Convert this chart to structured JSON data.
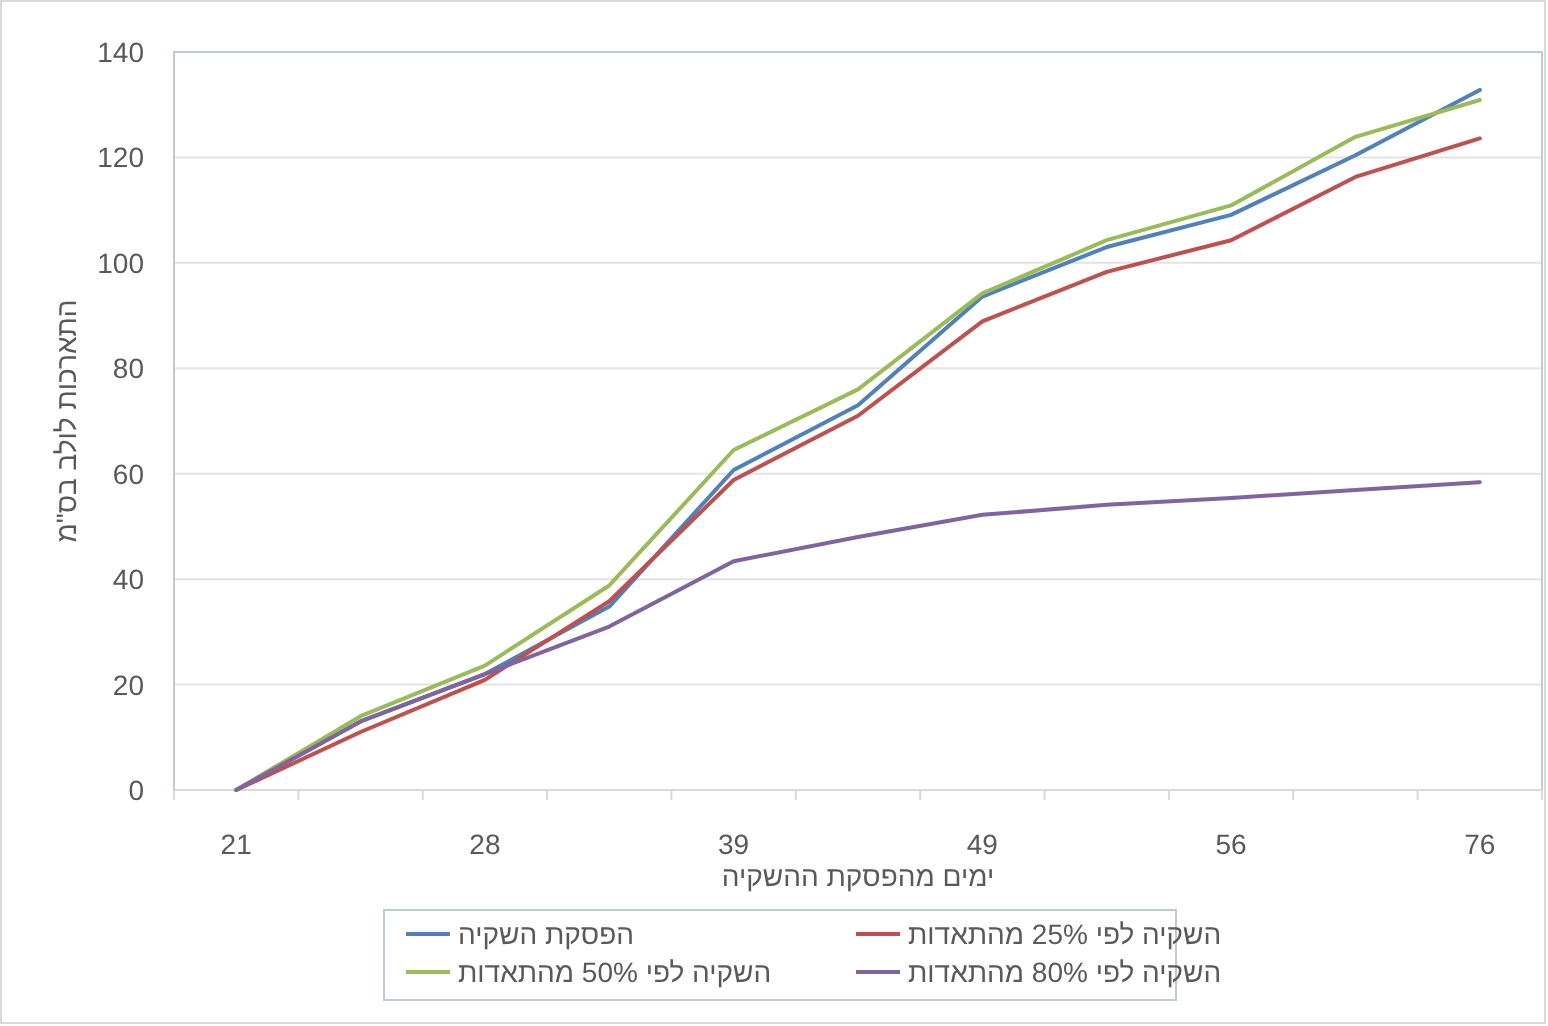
{
  "chart_data": {
    "type": "line",
    "xlabel": "ימים מהפסקת ההשקיה",
    "ylabel": "התארכות לולב בס\"מ",
    "categories": [
      "21",
      null,
      "28",
      null,
      "39",
      null,
      "49",
      null,
      "56",
      null,
      "76"
    ],
    "series": [
      {
        "name": "הפסקת השקיה",
        "color": "#4f81bd",
        "values": [
          0,
          13,
          22,
          34.8,
          60.7,
          73,
          93.6,
          103,
          109.1,
          120.4,
          132.8
        ]
      },
      {
        "name": "השקיה לפי 25% מהתאדות",
        "color": "#c0504d",
        "values": [
          0,
          11,
          20.9,
          35.8,
          58.8,
          71,
          88.9,
          98.3,
          104.3,
          116.3,
          123.6
        ]
      },
      {
        "name": "השקיה לפי 50% מהתאדות",
        "color": "#9bbb59",
        "values": [
          0,
          14,
          23.6,
          38.8,
          64.5,
          76,
          94.2,
          104.3,
          110.9,
          123.9,
          130.9
        ]
      },
      {
        "name": "השקיה לפי 80% מהתאדות",
        "color": "#8064a2",
        "values": [
          0,
          13,
          22,
          31,
          43.4,
          48,
          52.2,
          54.1,
          55.4,
          56.9,
          58.4
        ]
      }
    ],
    "ylim": [
      0,
      140
    ],
    "yticks": [
      0,
      20,
      40,
      60,
      80,
      100,
      120,
      140
    ],
    "grid": "y",
    "legend": "bottom",
    "marker": "none",
    "line_style": "solid"
  }
}
